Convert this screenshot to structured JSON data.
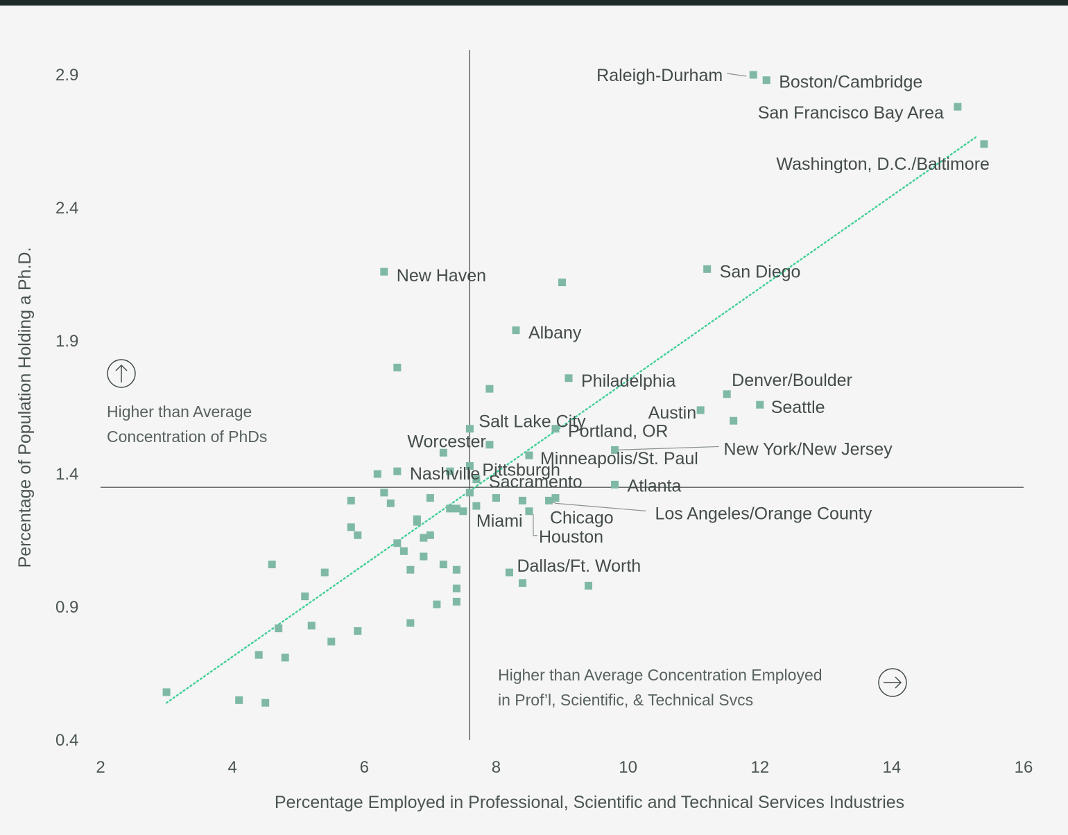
{
  "chart_data": {
    "type": "scatter",
    "xlabel": "Percentage Employed in Professional, Scientific and Technical Services Industries",
    "ylabel": "Percentage of Population Holding a Ph.D.",
    "xlim": [
      2,
      16
    ],
    "ylim": [
      0.4,
      3.0
    ],
    "xticks": [
      2,
      4,
      6,
      8,
      10,
      12,
      14,
      16
    ],
    "yticks": [
      0.4,
      0.9,
      1.4,
      1.9,
      2.4,
      2.9
    ],
    "average_lines": {
      "x": 7.6,
      "y": 1.35
    },
    "trendline": {
      "from": [
        3.0,
        0.54
      ],
      "to": [
        15.3,
        2.67
      ],
      "style": "dotted"
    },
    "annotations": {
      "y_direction": [
        "Higher than Average",
        "Concentration of PhDs"
      ],
      "x_direction": [
        "Higher than Average Concentration Employed",
        "in Prof’l, Scientific, & Technical Svcs"
      ]
    },
    "labeled_points": [
      {
        "name": "Raleigh-Durham",
        "x": 11.9,
        "y": 2.9
      },
      {
        "name": "Boston/Cambridge",
        "x": 12.1,
        "y": 2.88
      },
      {
        "name": "San Francisco Bay Area",
        "x": 15.0,
        "y": 2.78
      },
      {
        "name": "Washington, D.C./Baltimore",
        "x": 15.4,
        "y": 2.64
      },
      {
        "name": "San Diego",
        "x": 11.2,
        "y": 2.17
      },
      {
        "name": "New Haven",
        "x": 6.3,
        "y": 2.16
      },
      {
        "name": "Albany",
        "x": 8.3,
        "y": 1.94
      },
      {
        "name": "Philadelphia",
        "x": 9.1,
        "y": 1.76
      },
      {
        "name": "Denver/Boulder",
        "x": 11.5,
        "y": 1.7
      },
      {
        "name": "Seattle",
        "x": 12.0,
        "y": 1.66
      },
      {
        "name": "Austin",
        "x": 11.1,
        "y": 1.64
      },
      {
        "name": "Salt Lake City",
        "x": 7.6,
        "y": 1.57
      },
      {
        "name": "Portland, OR",
        "x": 8.9,
        "y": 1.57
      },
      {
        "name": "Worcester",
        "x": 7.2,
        "y": 1.48
      },
      {
        "name": "Minneapolis/St. Paul",
        "x": 8.5,
        "y": 1.47
      },
      {
        "name": "New York/New Jersey",
        "x": 9.8,
        "y": 1.49
      },
      {
        "name": "Nashville",
        "x": 6.5,
        "y": 1.41
      },
      {
        "name": "Pittsburgh",
        "x": 7.6,
        "y": 1.43
      },
      {
        "name": "Sacramento",
        "x": 7.7,
        "y": 1.38
      },
      {
        "name": "Atlanta",
        "x": 9.8,
        "y": 1.36
      },
      {
        "name": "Los Angeles/Orange County",
        "x": 8.8,
        "y": 1.3
      },
      {
        "name": "Chicago",
        "x": 8.9,
        "y": 1.31
      },
      {
        "name": "Miami",
        "x": 7.7,
        "y": 1.28
      },
      {
        "name": "Houston",
        "x": 8.5,
        "y": 1.26
      },
      {
        "name": "Dallas/Ft. Worth",
        "x": 8.2,
        "y": 1.03
      }
    ],
    "unlabeled_points": [
      {
        "x": 9.0,
        "y": 2.12
      },
      {
        "x": 6.5,
        "y": 1.8
      },
      {
        "x": 7.9,
        "y": 1.72
      },
      {
        "x": 11.6,
        "y": 1.6
      },
      {
        "x": 7.9,
        "y": 1.51
      },
      {
        "x": 6.2,
        "y": 1.4
      },
      {
        "x": 7.3,
        "y": 1.41
      },
      {
        "x": 6.3,
        "y": 1.33
      },
      {
        "x": 5.8,
        "y": 1.3
      },
      {
        "x": 6.4,
        "y": 1.29
      },
      {
        "x": 7.0,
        "y": 1.31
      },
      {
        "x": 7.6,
        "y": 1.33
      },
      {
        "x": 8.0,
        "y": 1.31
      },
      {
        "x": 8.4,
        "y": 1.3
      },
      {
        "x": 7.3,
        "y": 1.27
      },
      {
        "x": 7.4,
        "y": 1.27
      },
      {
        "x": 7.5,
        "y": 1.26
      },
      {
        "x": 6.8,
        "y": 1.23
      },
      {
        "x": 6.8,
        "y": 1.22
      },
      {
        "x": 5.8,
        "y": 1.2
      },
      {
        "x": 5.9,
        "y": 1.17
      },
      {
        "x": 7.0,
        "y": 1.17
      },
      {
        "x": 6.9,
        "y": 1.16
      },
      {
        "x": 6.5,
        "y": 1.14
      },
      {
        "x": 6.6,
        "y": 1.11
      },
      {
        "x": 6.9,
        "y": 1.09
      },
      {
        "x": 7.2,
        "y": 1.06
      },
      {
        "x": 4.6,
        "y": 1.06
      },
      {
        "x": 6.7,
        "y": 1.04
      },
      {
        "x": 7.4,
        "y": 1.04
      },
      {
        "x": 5.4,
        "y": 1.03
      },
      {
        "x": 8.4,
        "y": 0.99
      },
      {
        "x": 9.4,
        "y": 0.98
      },
      {
        "x": 7.4,
        "y": 0.97
      },
      {
        "x": 5.1,
        "y": 0.94
      },
      {
        "x": 7.4,
        "y": 0.92
      },
      {
        "x": 7.1,
        "y": 0.91
      },
      {
        "x": 6.7,
        "y": 0.84
      },
      {
        "x": 5.2,
        "y": 0.83
      },
      {
        "x": 4.7,
        "y": 0.82
      },
      {
        "x": 5.9,
        "y": 0.81
      },
      {
        "x": 5.5,
        "y": 0.77
      },
      {
        "x": 4.4,
        "y": 0.72
      },
      {
        "x": 4.8,
        "y": 0.71
      },
      {
        "x": 3.0,
        "y": 0.58
      },
      {
        "x": 4.1,
        "y": 0.55
      },
      {
        "x": 4.5,
        "y": 0.54
      }
    ],
    "colors": {
      "point": "#7fb9a6",
      "trendline": "#3fcf95",
      "average_line": "#3b4240",
      "text": "#434c4a",
      "leader": "#8a9290"
    }
  }
}
